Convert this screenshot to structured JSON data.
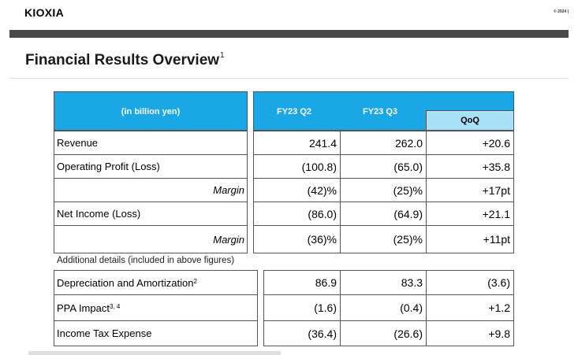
{
  "header": {
    "logo": "KIOXIA",
    "copyright": "© 2024 |"
  },
  "page": {
    "title": "Financial Results Overview",
    "title_sup": "1"
  },
  "table": {
    "unit_label": "(in billion yen)",
    "col_q2": "FY23 Q2",
    "col_q3": "FY23 Q3",
    "col_qoq": "QoQ",
    "rows": [
      {
        "label": "Revenue",
        "q2": "241.4",
        "q3": "262.0",
        "qoq": "+20.6"
      },
      {
        "label": "Operating Profit (Loss)",
        "q2": "(100.8)",
        "q3": "(65.0)",
        "qoq": "+35.8"
      },
      {
        "label": "Margin",
        "q2": "(42)%",
        "q3": "(25)%",
        "qoq": "+17pt"
      },
      {
        "label": "Net Income (Loss)",
        "q2": "(86.0)",
        "q3": "(64.9)",
        "qoq": "+21.1"
      },
      {
        "label": "Margin",
        "q2": "(36)%",
        "q3": "(25)%",
        "qoq": "+11pt"
      }
    ],
    "additional_note": "Additional details (included in above figures)",
    "details": [
      {
        "label": "Depreciation and Amortization",
        "sup": "2",
        "q2": "86.9",
        "q3": "83.3",
        "qoq": "(3.6)"
      },
      {
        "label": "PPA Impact",
        "sup": "3, 4",
        "q2": "(1.6)",
        "q3": "(0.4)",
        "qoq": "+1.2"
      },
      {
        "label": "Income Tax Expense",
        "sup": "",
        "q2": "(36.4)",
        "q3": "(26.6)",
        "qoq": "+9.8"
      }
    ]
  }
}
